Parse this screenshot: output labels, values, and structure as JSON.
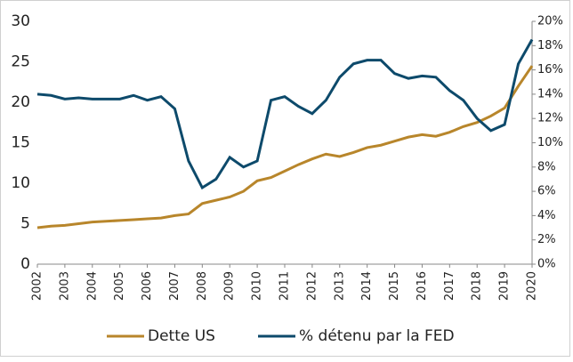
{
  "chart_data": {
    "type": "line",
    "x": [
      2002,
      2002.5,
      2003,
      2003.5,
      2004,
      2004.5,
      2005,
      2005.5,
      2006,
      2006.5,
      2007,
      2007.5,
      2008,
      2008.5,
      2009,
      2009.5,
      2010,
      2010.5,
      2011,
      2011.5,
      2012,
      2012.5,
      2013,
      2013.5,
      2014,
      2014.5,
      2015,
      2015.5,
      2016,
      2016.5,
      2017,
      2017.5,
      2018,
      2018.5,
      2019,
      2019.5,
      2020
    ],
    "series": [
      {
        "name": "Dette US",
        "color": "#b8862b",
        "values": [
          4.5,
          4.7,
          4.8,
          5.0,
          5.2,
          5.3,
          5.4,
          5.5,
          5.6,
          5.7,
          6.0,
          6.2,
          7.5,
          7.9,
          8.3,
          9.0,
          10.3,
          10.7,
          11.5,
          12.3,
          13.0,
          13.6,
          13.3,
          13.8,
          14.4,
          14.7,
          15.2,
          15.7,
          16.0,
          15.8,
          16.3,
          17.0,
          17.5,
          18.3,
          19.3,
          22.0,
          24.5
        ]
      },
      {
        "name": "% détenu par la FED",
        "color": "#0d4a6b",
        "axis": "y2",
        "values": [
          14.0,
          13.9,
          13.6,
          13.7,
          13.6,
          13.6,
          13.6,
          13.9,
          13.5,
          13.8,
          12.8,
          8.5,
          6.3,
          7.0,
          8.8,
          8.0,
          8.5,
          13.5,
          13.8,
          13.0,
          12.4,
          13.5,
          15.4,
          16.5,
          16.8,
          16.8,
          15.7,
          15.3,
          15.5,
          15.4,
          14.3,
          13.5,
          12.0,
          11.0,
          11.5,
          16.5,
          18.5
        ]
      }
    ],
    "xlim": [
      2002,
      2020
    ],
    "xticks": [
      2002,
      2003,
      2004,
      2005,
      2006,
      2007,
      2008,
      2009,
      2010,
      2011,
      2012,
      2013,
      2014,
      2015,
      2016,
      2017,
      2018,
      2019,
      2020
    ],
    "ylim": [
      0,
      30
    ],
    "yticks": [
      0,
      5,
      10,
      15,
      20,
      25,
      30
    ],
    "y2lim": [
      0,
      20
    ],
    "y2ticks": [
      {
        "value": 0,
        "label": "0%"
      },
      {
        "value": 2,
        "label": "2%"
      },
      {
        "value": 4,
        "label": "4%"
      },
      {
        "value": 6,
        "label": "6%"
      },
      {
        "value": 8,
        "label": "8%"
      },
      {
        "value": 10,
        "label": "10%"
      },
      {
        "value": 12,
        "label": "12%"
      },
      {
        "value": 14,
        "label": "14%"
      },
      {
        "value": 16,
        "label": "16%"
      },
      {
        "value": 18,
        "label": "18%"
      },
      {
        "value": 20,
        "label": "20%"
      }
    ],
    "legend": "bottom"
  }
}
